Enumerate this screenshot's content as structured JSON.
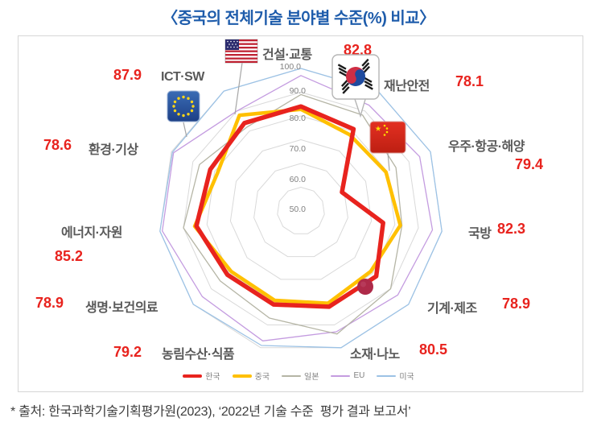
{
  "title": "〈중국의 전체기술 분야별 수준(%) 비교〉",
  "source_note": "* 출처: 한국과학기술기획평가원(2023), ‘2022년 기술 수준  평가 결과 보고서’",
  "colors": {
    "title": "#1e5cab",
    "category_label": "#595959",
    "value_label": "#e8231e",
    "grid": "#d9d9d9",
    "tick": "#808080",
    "korea_red": "#e8231e",
    "china_yellow": "#ffc000",
    "japan_gray": "#b5b5a5",
    "eu_purple": "#c49ce0",
    "usa_blue": "#9cc2e5"
  },
  "axis": {
    "min": 40,
    "max": 100,
    "tick_labels": [
      "100.0",
      "90.0",
      "80.0",
      "70.0",
      "60.0",
      "50.0"
    ],
    "ring_values": [
      50,
      60,
      70,
      80,
      90,
      100
    ]
  },
  "chart_data": {
    "type": "radar",
    "title": "중국의 전체기술 분야별 수준(%) 비교",
    "categories": [
      "건설·교통",
      "재난안전",
      "우주·항공·해양",
      "국방",
      "기계·제조",
      "소재·나노",
      "농림수산·식품",
      "생명·보건의료",
      "에너지·자원",
      "환경·기상",
      "ICT·SW"
    ],
    "labeled_values": [
      "82.8",
      "78.1",
      "79.4",
      "82.3",
      "78.9",
      "80.5",
      "79.2",
      "78.9",
      "85.2",
      "78.6",
      "87.9"
    ],
    "labeled_values_series": "중국",
    "series": [
      {
        "id": "usa",
        "name": "미국",
        "color": "#9cc2e5",
        "line_width": 1.3,
        "values": [
          100,
          100,
          100,
          100,
          100,
          100,
          99,
          100,
          100,
          99.5,
          100
        ]
      },
      {
        "id": "eu",
        "name": "EU",
        "color": "#c49ce0",
        "line_width": 1.3,
        "values": [
          97,
          93,
          95,
          96,
          94,
          93,
          97,
          95,
          99,
          99,
          90
        ]
      },
      {
        "id": "japan",
        "name": "일본",
        "color": "#b5b5a5",
        "line_width": 1.3,
        "values": [
          89,
          88,
          84,
          83,
          90,
          94,
          87,
          85,
          90,
          87,
          82
        ]
      },
      {
        "id": "china",
        "name": "중국",
        "color": "#ffc000",
        "line_width": 4.5,
        "values": [
          82.8,
          78.1,
          79.4,
          82.3,
          78.9,
          80.5,
          79.2,
          78.9,
          85.2,
          78.6,
          87.9
        ]
      },
      {
        "id": "korea",
        "name": "한국",
        "color": "#e8231e",
        "line_width": 5.5,
        "values": [
          84,
          81,
          59,
          75,
          82,
          82,
          81,
          81,
          84.5,
          82,
          84
        ]
      }
    ],
    "legend_position": "bottom",
    "grid": true
  },
  "legend": [
    {
      "label": "한국",
      "color": "#e8231e",
      "thick": true
    },
    {
      "label": "중국",
      "color": "#ffc000",
      "thick": true
    },
    {
      "label": "일본",
      "color": "#b5b5a5",
      "thick": false
    },
    {
      "label": "EU",
      "color": "#c49ce0",
      "thick": false
    },
    {
      "label": "미국",
      "color": "#9cc2e5",
      "thick": false
    }
  ],
  "flags": [
    "us-flag",
    "kr-flag",
    "eu-flag",
    "cn-flag",
    "jp-flag"
  ]
}
